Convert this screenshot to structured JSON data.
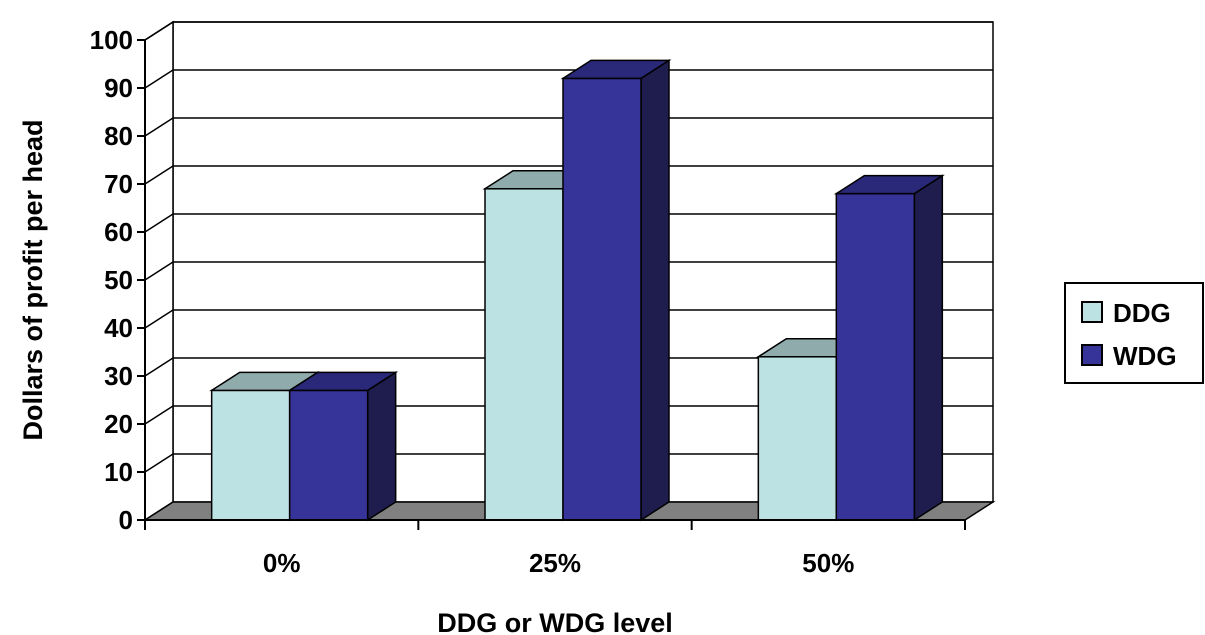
{
  "chart_data": {
    "type": "bar",
    "categories": [
      "0%",
      "25%",
      "50%"
    ],
    "series": [
      {
        "name": "DDG",
        "values": [
          27,
          69,
          34
        ],
        "color": "#bde2e4"
      },
      {
        "name": "WDG",
        "values": [
          27,
          92,
          68
        ],
        "color": "#363399"
      }
    ],
    "xlabel": "DDG or WDG level",
    "ylabel": "Dollars of profit per head",
    "ylim": [
      0,
      100
    ],
    "yticks": [
      0,
      10,
      20,
      30,
      40,
      50,
      60,
      70,
      80,
      90,
      100
    ],
    "grid": true,
    "legend": "right",
    "three_d": true,
    "colors": {
      "floor": "#808080",
      "grid": "#000000",
      "background": "#ffffff"
    }
  }
}
